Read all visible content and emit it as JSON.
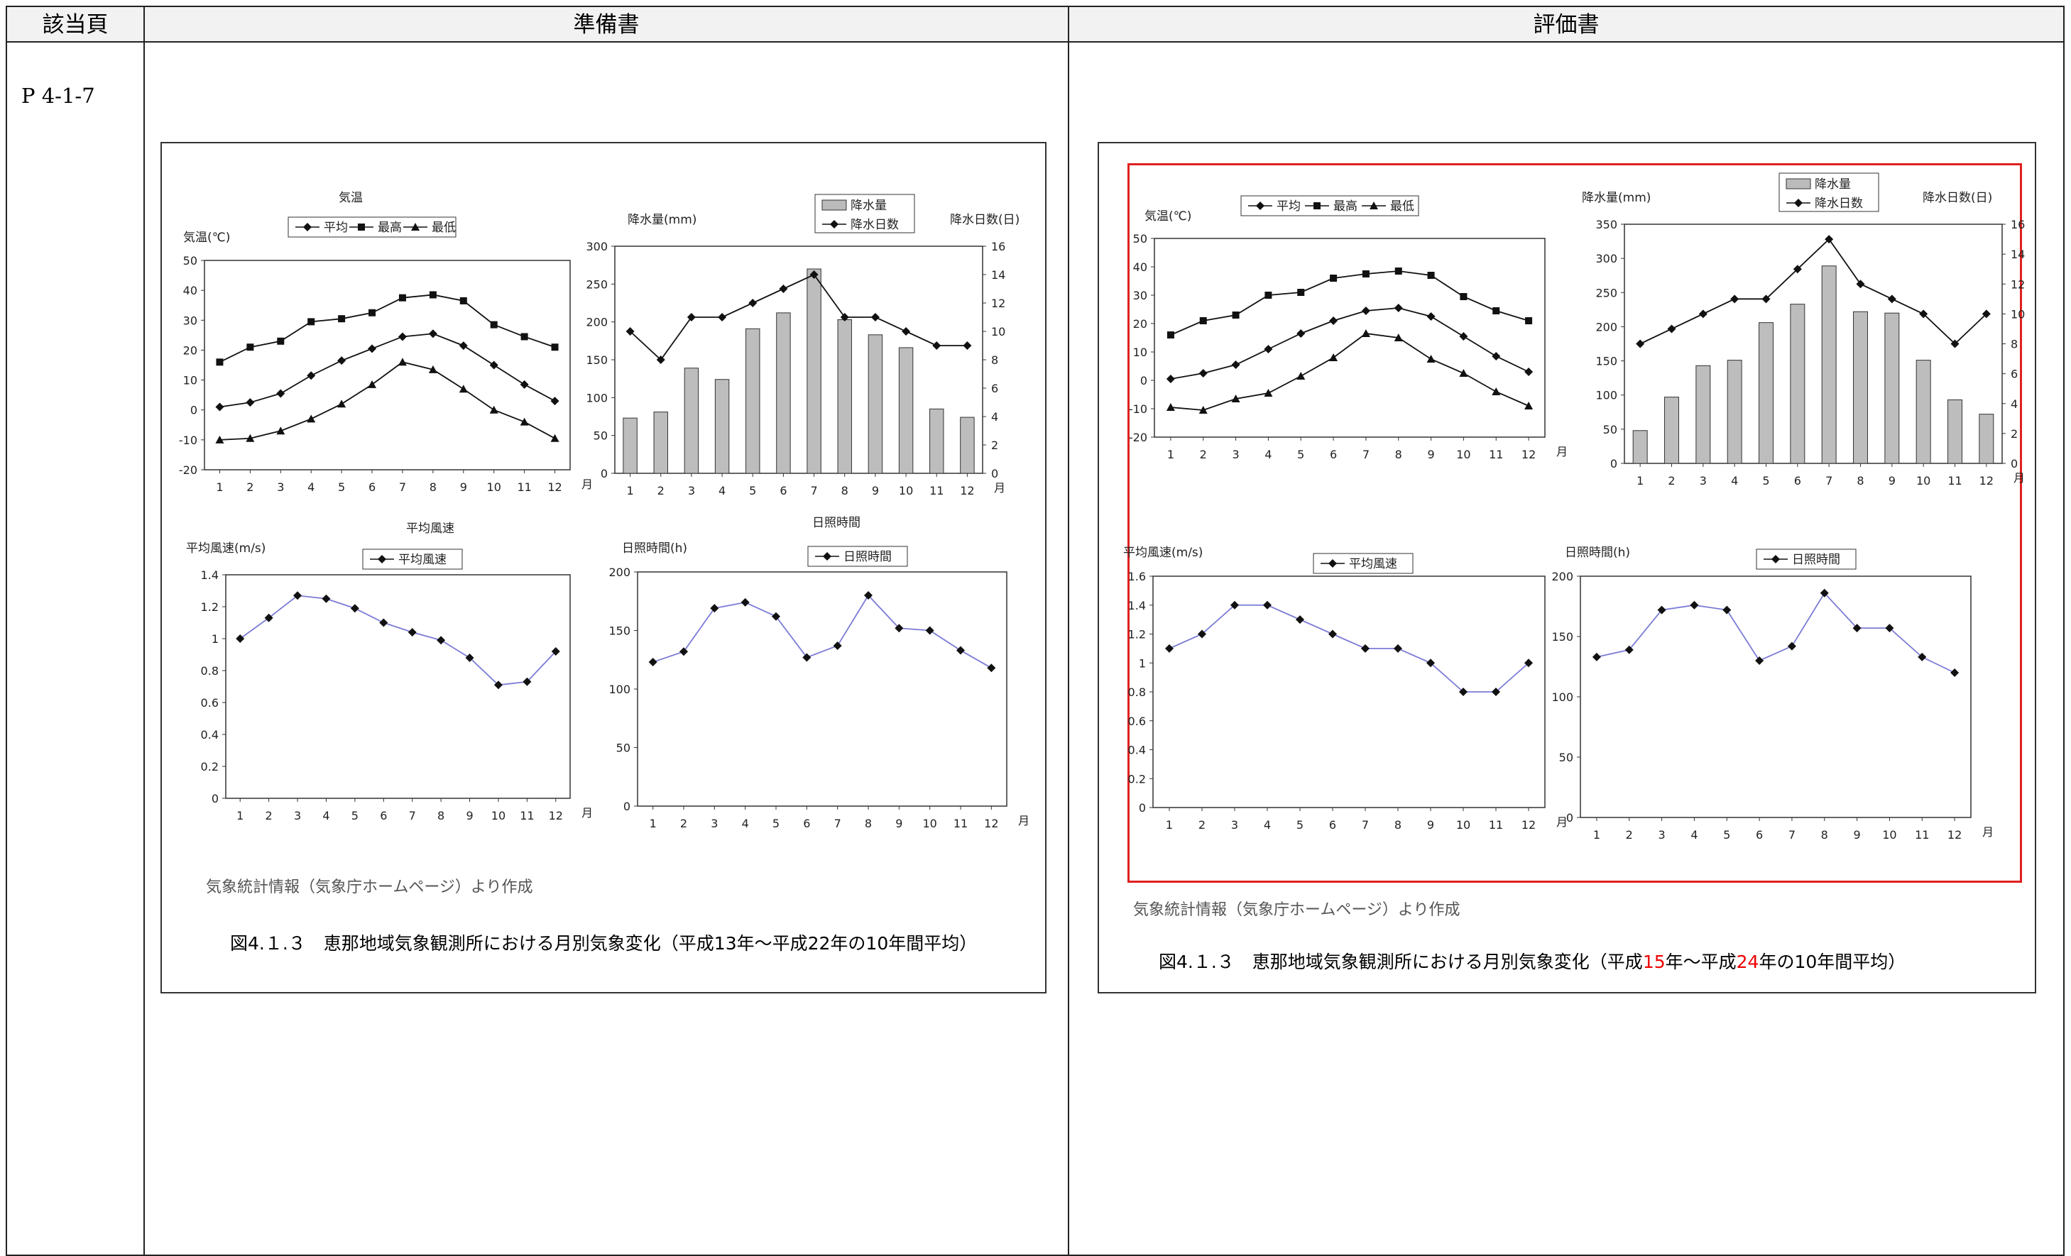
{
  "table": {
    "col1_header": "該当頁",
    "col2_header": "準備書",
    "col3_header": "評価書",
    "page_ref": "P 4-1-7"
  },
  "left_figure": {
    "source_note": "気象統計情報（気象庁ホームページ）より作成",
    "caption": "図4.１.３　恵那地域気象観測所における月別気象変化（平成13年～平成22年の10年間平均）"
  },
  "right_figure": {
    "source_note": "気象統計情報（気象庁ホームページ）より作成",
    "caption_pre": "図4.１.３　恵那地域気象観測所における月別気象変化（平成",
    "caption_red1": "15",
    "caption_mid": "年～平成",
    "caption_red2": "24",
    "caption_post": "年の10年間平均）",
    "highlight_color": "#e02020"
  },
  "chart_data": [
    {
      "id": "left-temp",
      "type": "line",
      "title": "気温",
      "ylabel": "気温(℃)",
      "xlabel": "月",
      "x": [
        1,
        2,
        3,
        4,
        5,
        6,
        7,
        8,
        9,
        10,
        11,
        12
      ],
      "ylim": [
        -20,
        50
      ],
      "yticks": [
        -20,
        -10,
        0,
        10,
        20,
        30,
        40,
        50
      ],
      "series": [
        {
          "name": "平均",
          "marker": "diamond",
          "values": [
            1,
            2.5,
            5.5,
            11.5,
            16.5,
            20.5,
            24.5,
            25.5,
            21.5,
            15,
            8.5,
            3
          ]
        },
        {
          "name": "最高",
          "marker": "square",
          "values": [
            16,
            21,
            23,
            29.5,
            30.5,
            32.5,
            37.5,
            38.5,
            36.5,
            28.5,
            24.5,
            21
          ]
        },
        {
          "name": "最低",
          "marker": "triangle",
          "values": [
            -10,
            -9.5,
            -7,
            -3,
            2,
            8.5,
            16,
            13.5,
            7,
            0,
            -4,
            -9.5
          ]
        }
      ]
    },
    {
      "id": "left-precip",
      "type": "bar+line",
      "ylabel": "降水量(mm)",
      "y2label": "降水日数(日)",
      "xlabel": "月",
      "x": [
        1,
        2,
        3,
        4,
        5,
        6,
        7,
        8,
        9,
        10,
        11,
        12
      ],
      "ylim": [
        0,
        300
      ],
      "yticks": [
        0,
        50,
        100,
        150,
        200,
        250,
        300
      ],
      "y2lim": [
        0,
        16
      ],
      "y2ticks": [
        0,
        2,
        4,
        6,
        8,
        10,
        12,
        14,
        16
      ],
      "series": [
        {
          "name": "降水量",
          "kind": "bar",
          "values": [
            73,
            81,
            139,
            124,
            191,
            212,
            270,
            203,
            183,
            166,
            85,
            74
          ]
        },
        {
          "name": "降水日数",
          "kind": "line",
          "axis": "y2",
          "values": [
            10,
            8,
            11,
            11,
            12,
            13,
            14,
            11,
            11,
            10,
            9,
            9
          ]
        }
      ]
    },
    {
      "id": "left-wind",
      "type": "line",
      "title": "平均風速",
      "ylabel": "平均風速(m/s)",
      "xlabel": "月",
      "x": [
        1,
        2,
        3,
        4,
        5,
        6,
        7,
        8,
        9,
        10,
        11,
        12
      ],
      "ylim": [
        0,
        1.4
      ],
      "yticks": [
        0,
        0.2,
        0.4,
        0.6,
        0.8,
        1,
        1.2,
        1.4
      ],
      "series": [
        {
          "name": "平均風速",
          "marker": "diamond",
          "values": [
            1.0,
            1.13,
            1.27,
            1.25,
            1.19,
            1.1,
            1.04,
            0.99,
            0.88,
            0.71,
            0.73,
            0.92
          ]
        }
      ]
    },
    {
      "id": "left-sun",
      "type": "line",
      "title": "日照時間",
      "ylabel": "日照時間(h)",
      "xlabel": "月",
      "x": [
        1,
        2,
        3,
        4,
        5,
        6,
        7,
        8,
        9,
        10,
        11,
        12
      ],
      "ylim": [
        0,
        200
      ],
      "yticks": [
        0,
        50,
        100,
        150,
        200
      ],
      "series": [
        {
          "name": "日照時間",
          "marker": "diamond",
          "values": [
            123,
            132,
            169,
            174,
            162,
            127,
            137,
            180,
            152,
            150,
            133,
            118
          ]
        }
      ]
    },
    {
      "id": "right-temp",
      "type": "line",
      "ylabel": "気温(℃)",
      "xlabel": "月",
      "x": [
        1,
        2,
        3,
        4,
        5,
        6,
        7,
        8,
        9,
        10,
        11,
        12
      ],
      "ylim": [
        -20,
        50
      ],
      "yticks": [
        -20,
        -10,
        0,
        10,
        20,
        30,
        40,
        50
      ],
      "series": [
        {
          "name": "平均",
          "marker": "diamond",
          "values": [
            0.5,
            2.5,
            5.5,
            11,
            16.5,
            21,
            24.5,
            25.5,
            22.5,
            15.5,
            8.5,
            3
          ]
        },
        {
          "name": "最高",
          "marker": "square",
          "values": [
            16,
            21,
            23,
            30,
            31,
            36,
            37.5,
            38.5,
            37,
            29.5,
            24.5,
            21
          ]
        },
        {
          "name": "最低",
          "marker": "triangle",
          "values": [
            -9.5,
            -10.5,
            -6.5,
            -4.5,
            1.5,
            8,
            16.5,
            15,
            7.5,
            2.5,
            -4,
            -9
          ]
        }
      ]
    },
    {
      "id": "right-precip",
      "type": "bar+line",
      "ylabel": "降水量(mm)",
      "y2label": "降水日数(日)",
      "xlabel": "月",
      "x": [
        1,
        2,
        3,
        4,
        5,
        6,
        7,
        8,
        9,
        10,
        11,
        12
      ],
      "ylim": [
        0,
        350
      ],
      "yticks": [
        0,
        50,
        100,
        150,
        200,
        250,
        300,
        350
      ],
      "y2lim": [
        0,
        16
      ],
      "y2ticks": [
        0,
        2,
        4,
        6,
        8,
        10,
        12,
        14,
        16
      ],
      "series": [
        {
          "name": "降水量",
          "kind": "bar",
          "values": [
            48,
            97,
            143,
            151,
            206,
            233,
            289,
            222,
            220,
            151,
            93,
            72
          ]
        },
        {
          "name": "降水日数",
          "kind": "line",
          "axis": "y2",
          "values": [
            8,
            9,
            10,
            11,
            11,
            13,
            15,
            12,
            11,
            10,
            8,
            10
          ]
        }
      ]
    },
    {
      "id": "right-wind",
      "type": "line",
      "ylabel": "平均風速(m/s)",
      "xlabel": "月",
      "x": [
        1,
        2,
        3,
        4,
        5,
        6,
        7,
        8,
        9,
        10,
        11,
        12
      ],
      "ylim": [
        0,
        1.6
      ],
      "yticks": [
        0,
        0.2,
        0.4,
        0.6,
        0.8,
        1,
        1.2,
        1.4,
        1.6
      ],
      "series": [
        {
          "name": "平均風速",
          "marker": "diamond",
          "values": [
            1.1,
            1.2,
            1.4,
            1.4,
            1.3,
            1.2,
            1.1,
            1.1,
            1.0,
            0.8,
            0.8,
            1.0
          ]
        }
      ]
    },
    {
      "id": "right-sun",
      "type": "line",
      "ylabel": "日照時間(h)",
      "xlabel": "月",
      "x": [
        1,
        2,
        3,
        4,
        5,
        6,
        7,
        8,
        9,
        10,
        11,
        12
      ],
      "ylim": [
        0,
        200
      ],
      "yticks": [
        0,
        50,
        100,
        150,
        200
      ],
      "series": [
        {
          "name": "日照時間",
          "marker": "diamond",
          "values": [
            133,
            139,
            172,
            176,
            172,
            130,
            142,
            186,
            157,
            157,
            133,
            120
          ]
        }
      ]
    }
  ]
}
